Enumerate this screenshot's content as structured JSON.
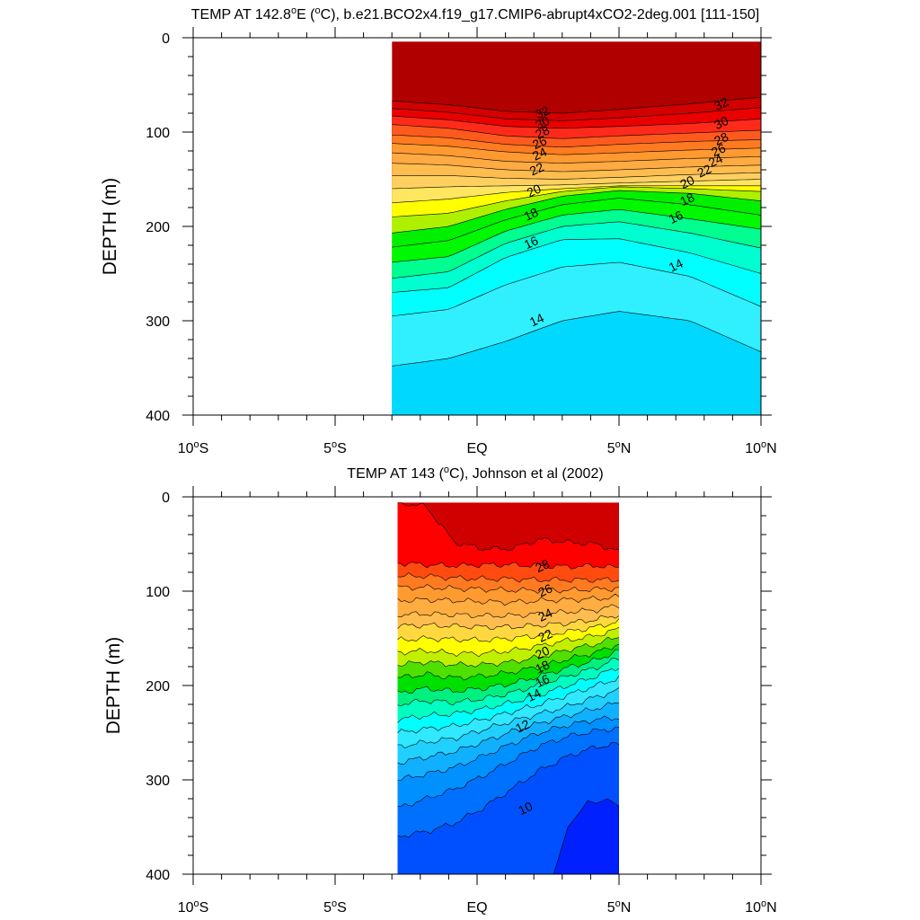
{
  "chart_data": [
    {
      "type": "contour",
      "title": "TEMP AT 142.8°E (°C), b.e21.BCO2x4.f19_g17.CMIP6-abrupt4xCO2-2deg.001 [111-150]",
      "title_parts": [
        "TEMP AT 142.8",
        "o",
        "E (",
        "o",
        "C), b.e21.BCO2x4.f19_g17.CMIP6-abrupt4xCO2-2deg.001 [111-150]"
      ],
      "xlabel": "",
      "ylabel": "DEPTH (m)",
      "xlim": [
        -10,
        10
      ],
      "ylim": [
        400,
        0
      ],
      "data_xrange": [
        -3,
        10
      ],
      "data_yrange": [
        4,
        400
      ],
      "yticks": [
        0,
        100,
        200,
        300,
        400
      ],
      "xticks": [
        {
          "value": -10,
          "num": "10",
          "hemi": "S"
        },
        {
          "value": -5,
          "num": "5",
          "hemi": "S"
        },
        {
          "value": 0,
          "num": "EQ",
          "hemi": ""
        },
        {
          "value": 5,
          "num": "5",
          "hemi": "N"
        },
        {
          "value": 10,
          "num": "10",
          "hemi": "N"
        }
      ],
      "bands": [
        {
          "level": 33,
          "color": "#b00000",
          "depths": [
            67,
            71,
            78,
            80,
            76,
            70,
            63
          ]
        },
        {
          "level": 32,
          "color": "#d20000",
          "depths": [
            75,
            79,
            86,
            88,
            85,
            80,
            74
          ]
        },
        {
          "level": 31,
          "color": "#ea0000",
          "depths": [
            83,
            87,
            94,
            96,
            94,
            91,
            86
          ]
        },
        {
          "level": 30,
          "color": "#ff2a1a",
          "depths": [
            92,
            96,
            104,
            107,
            104,
            101,
            98
          ]
        },
        {
          "level": 29,
          "color": "#ff5a1e",
          "depths": [
            103,
            106,
            113,
            116,
            113,
            110,
            108
          ]
        },
        {
          "level": 28,
          "color": "#ff7a20",
          "depths": [
            112,
            115,
            121,
            124,
            122,
            119,
            117
          ]
        },
        {
          "level": 27,
          "color": "#ff9a30",
          "depths": [
            122,
            125,
            131,
            133,
            131,
            128,
            126
          ]
        },
        {
          "level": 26,
          "color": "#ffaa42",
          "depths": [
            133,
            135,
            140,
            142,
            140,
            137,
            135
          ]
        },
        {
          "level": 25,
          "color": "#ffbd50",
          "depths": [
            146,
            146,
            149,
            150,
            148,
            145,
            143
          ]
        },
        {
          "level": 24,
          "color": "#ffd060",
          "depths": [
            160,
            158,
            157,
            156,
            154,
            152,
            150
          ]
        },
        {
          "level": 23,
          "color": "#ffe660",
          "depths": [
            175,
            171,
            164,
            160,
            157,
            157,
            157
          ]
        },
        {
          "level": 22,
          "color": "#ffff00",
          "depths": [
            190,
            186,
            173,
            163,
            158,
            160,
            163
          ]
        },
        {
          "level": 21,
          "color": "#aef000",
          "depths": [
            207,
            200,
            182,
            168,
            162,
            165,
            173
          ]
        },
        {
          "level": 20,
          "color": "#00f000",
          "depths": [
            222,
            215,
            193,
            177,
            170,
            177,
            188
          ]
        },
        {
          "level": 19,
          "color": "#00f800",
          "depths": [
            238,
            232,
            205,
            188,
            182,
            192,
            203
          ]
        },
        {
          "level": 18,
          "color": "#00ff90",
          "depths": [
            255,
            248,
            218,
            200,
            195,
            207,
            223
          ]
        },
        {
          "level": 17,
          "color": "#00ffd0",
          "depths": [
            270,
            265,
            233,
            214,
            213,
            228,
            250
          ]
        },
        {
          "level": 16,
          "color": "#00ffff",
          "depths": [
            295,
            288,
            262,
            243,
            238,
            253,
            285
          ]
        },
        {
          "level": 15,
          "color": "#30f0ff",
          "depths": [
            348,
            340,
            322,
            300,
            290,
            300,
            333
          ]
        },
        {
          "level": 14,
          "color": "#00d8ff",
          "depths": [
            400,
            400,
            400,
            400,
            400,
            395,
            400
          ]
        }
      ],
      "band_x": [
        -3,
        -1,
        1,
        3,
        5,
        7.5,
        10
      ],
      "labels": [
        {
          "text": "32",
          "x": 2.3,
          "y": 79
        },
        {
          "text": "30",
          "x": 2.3,
          "y": 90
        },
        {
          "text": "28",
          "x": 2.3,
          "y": 100
        },
        {
          "text": "26",
          "x": 2.2,
          "y": 111
        },
        {
          "text": "24",
          "x": 2.2,
          "y": 123
        },
        {
          "text": "22",
          "x": 2.1,
          "y": 139
        },
        {
          "text": "20",
          "x": 2.0,
          "y": 162
        },
        {
          "text": "18",
          "x": 1.9,
          "y": 187
        },
        {
          "text": "16",
          "x": 1.9,
          "y": 217
        },
        {
          "text": "14",
          "x": 2.1,
          "y": 299
        },
        {
          "text": "32",
          "x": 8.6,
          "y": 70
        },
        {
          "text": "30",
          "x": 8.6,
          "y": 90
        },
        {
          "text": "28",
          "x": 8.6,
          "y": 107
        },
        {
          "text": "26",
          "x": 8.5,
          "y": 119
        },
        {
          "text": "24",
          "x": 8.4,
          "y": 130
        },
        {
          "text": "22",
          "x": 8.0,
          "y": 141
        },
        {
          "text": "20",
          "x": 7.4,
          "y": 153
        },
        {
          "text": "18",
          "x": 7.4,
          "y": 171
        },
        {
          "text": "16",
          "x": 7.0,
          "y": 190
        },
        {
          "text": "14",
          "x": 7.0,
          "y": 241
        }
      ]
    },
    {
      "type": "contour",
      "title": "TEMP AT 143 (°C), Johnson et al (2002)",
      "title_parts": [
        "TEMP AT 143 (",
        "o",
        "C), Johnson et al (2002)"
      ],
      "xlabel": "",
      "ylabel": "DEPTH (m)",
      "xlim": [
        -10,
        10
      ],
      "ylim": [
        400,
        0
      ],
      "data_xrange": [
        -2.8,
        5
      ],
      "data_yrange": [
        6,
        400
      ],
      "yticks": [
        0,
        100,
        200,
        300,
        400
      ],
      "xticks": [
        {
          "value": -10,
          "num": "10",
          "hemi": "S"
        },
        {
          "value": -5,
          "num": "5",
          "hemi": "S"
        },
        {
          "value": 0,
          "num": "EQ",
          "hemi": ""
        },
        {
          "value": 5,
          "num": "5",
          "hemi": "N"
        },
        {
          "value": 10,
          "num": "10",
          "hemi": "N"
        }
      ],
      "bands": [
        {
          "level": 29,
          "color": "#d00000",
          "depths": [
            6,
            10,
            48,
            55,
            55,
            45,
            48,
            50,
            58
          ]
        },
        {
          "level": 28,
          "color": "#ff0000",
          "depths": [
            70,
            72,
            73,
            72,
            72,
            73,
            74,
            73,
            75
          ]
        },
        {
          "level": 27,
          "color": "#ff4a10",
          "depths": [
            84,
            84,
            86,
            87,
            87,
            88,
            88,
            88,
            88
          ]
        },
        {
          "level": 26,
          "color": "#ff7a20",
          "depths": [
            96,
            96,
            97,
            98,
            99,
            99,
            99,
            98,
            97
          ]
        },
        {
          "level": 25,
          "color": "#ff9a30",
          "depths": [
            110,
            109,
            110,
            111,
            112,
            110,
            109,
            108,
            106
          ]
        },
        {
          "level": 24,
          "color": "#ffac40",
          "depths": [
            125,
            124,
            125,
            126,
            126,
            124,
            122,
            120,
            115
          ]
        },
        {
          "level": 23,
          "color": "#ffbd50",
          "depths": [
            137,
            136,
            137,
            138,
            138,
            136,
            134,
            130,
            125
          ]
        },
        {
          "level": 22,
          "color": "#ffd840",
          "depths": [
            152,
            150,
            151,
            152,
            150,
            147,
            143,
            138,
            132
          ]
        },
        {
          "level": 21,
          "color": "#ffff00",
          "depths": [
            165,
            163,
            166,
            166,
            163,
            158,
            152,
            147,
            140
          ]
        },
        {
          "level": 20,
          "color": "#c0f000",
          "depths": [
            178,
            175,
            178,
            178,
            175,
            170,
            162,
            156,
            148
          ]
        },
        {
          "level": 19,
          "color": "#50e000",
          "depths": [
            192,
            188,
            192,
            190,
            186,
            180,
            172,
            165,
            156
          ]
        },
        {
          "level": 18,
          "color": "#00e000",
          "depths": [
            208,
            203,
            206,
            203,
            198,
            190,
            181,
            173,
            163
          ]
        },
        {
          "level": 17,
          "color": "#00f080",
          "depths": [
            220,
            216,
            218,
            214,
            208,
            199,
            190,
            181,
            171
          ]
        },
        {
          "level": 16,
          "color": "#00ffc0",
          "depths": [
            236,
            232,
            230,
            225,
            218,
            210,
            200,
            190,
            180
          ]
        },
        {
          "level": 15,
          "color": "#00ffff",
          "depths": [
            250,
            246,
            243,
            236,
            228,
            220,
            210,
            200,
            192
          ]
        },
        {
          "level": 14,
          "color": "#30e8ff",
          "depths": [
            265,
            260,
            256,
            247,
            238,
            230,
            222,
            212,
            205
          ]
        },
        {
          "level": 13,
          "color": "#20d0ff",
          "depths": [
            282,
            276,
            270,
            260,
            249,
            240,
            232,
            224,
            218
          ]
        },
        {
          "level": 12,
          "color": "#10b0ff",
          "depths": [
            300,
            294,
            287,
            275,
            262,
            250,
            242,
            236,
            234
          ]
        },
        {
          "level": 11,
          "color": "#0090ff",
          "depths": [
            330,
            320,
            310,
            296,
            280,
            264,
            254,
            248,
            245
          ]
        },
        {
          "level": 10,
          "color": "#0070ff",
          "depths": [
            360,
            355,
            346,
            330,
            310,
            290,
            275,
            265,
            262
          ]
        },
        {
          "level": 9,
          "color": "#0050ff",
          "depths": [
            395,
            400,
            400,
            400,
            400,
            400,
            400,
            400,
            400
          ]
        }
      ],
      "band_x": [
        -2.8,
        -1.8,
        -0.8,
        0.2,
        1.2,
        2.2,
        3.2,
        4.2,
        5
      ],
      "deep_patch": {
        "color": "#0020ff",
        "x": [
          2.7,
          3.2,
          3.6,
          3.9,
          4.2,
          4.6,
          5,
          5,
          2.7
        ],
        "y": [
          400,
          350,
          335,
          322,
          325,
          320,
          328,
          400,
          400
        ]
      },
      "labels": [
        {
          "text": "28",
          "x": 2.3,
          "y": 73
        },
        {
          "text": "26",
          "x": 2.4,
          "y": 99
        },
        {
          "text": "24",
          "x": 2.4,
          "y": 125
        },
        {
          "text": "22",
          "x": 2.4,
          "y": 147
        },
        {
          "text": "20",
          "x": 2.3,
          "y": 165
        },
        {
          "text": "18",
          "x": 2.3,
          "y": 180
        },
        {
          "text": "16",
          "x": 2.3,
          "y": 195
        },
        {
          "text": "14",
          "x": 2.0,
          "y": 210
        },
        {
          "text": "12",
          "x": 1.6,
          "y": 243
        },
        {
          "text": "10",
          "x": 1.7,
          "y": 330
        }
      ]
    }
  ]
}
